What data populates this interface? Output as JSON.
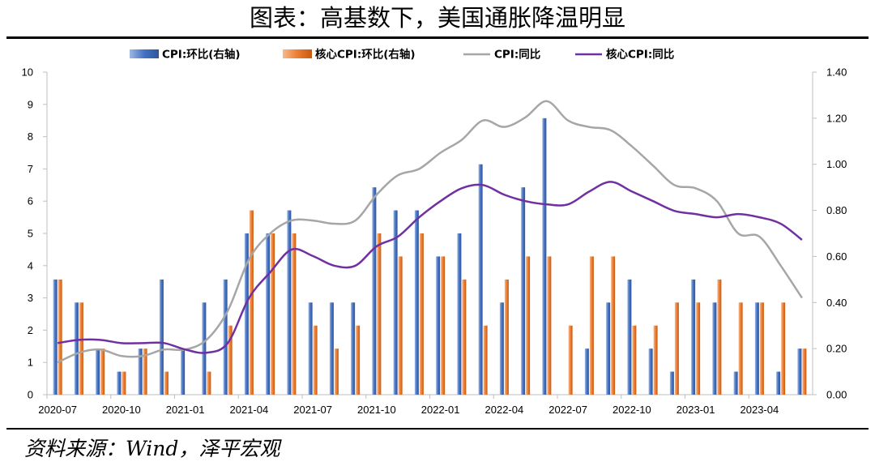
{
  "title": "图表：高基数下，美国通胀降温明显",
  "source": "资料来源：Wind，泽平宏观",
  "colors": {
    "cpi_mom": "#4472C4",
    "core_mom": "#ED7D31",
    "cpi_yoy": "#A6A6A6",
    "core_yoy": "#7030A0"
  },
  "chart_data": {
    "type": "bar+line",
    "legend_position": "top",
    "grid": false,
    "categories": [
      "2020-07",
      "2020-08",
      "2020-09",
      "2020-10",
      "2020-11",
      "2020-12",
      "2021-01",
      "2021-02",
      "2021-03",
      "2021-04",
      "2021-05",
      "2021-06",
      "2021-07",
      "2021-08",
      "2021-09",
      "2021-10",
      "2021-11",
      "2021-12",
      "2022-01",
      "2022-02",
      "2022-03",
      "2022-04",
      "2022-05",
      "2022-06",
      "2022-07",
      "2022-08",
      "2022-09",
      "2022-10",
      "2022-11",
      "2022-12",
      "2023-01",
      "2023-02",
      "2023-03",
      "2023-04",
      "2023-05",
      "2023-06"
    ],
    "x_tick_labels": [
      "2020-07",
      "2020-10",
      "2021-01",
      "2021-04",
      "2021-07",
      "2021-10",
      "2022-01",
      "2022-04",
      "2022-07",
      "2022-10",
      "2023-01",
      "2023-04"
    ],
    "left_axis": {
      "ylim": [
        0,
        10
      ],
      "ticks": [
        "0",
        "1",
        "2",
        "3",
        "4",
        "5",
        "6",
        "7",
        "8",
        "9",
        "10"
      ]
    },
    "right_axis": {
      "ylim": [
        0,
        1.4
      ],
      "ticks": [
        "0.00",
        "0.20",
        "0.40",
        "0.60",
        "0.80",
        "1.00",
        "1.20",
        "1.40"
      ]
    },
    "series": [
      {
        "name": "CPI:环比(右轴)",
        "kind": "bar",
        "axis": "right",
        "values": [
          0.5,
          0.4,
          0.2,
          0.1,
          0.2,
          0.5,
          0.2,
          0.4,
          0.5,
          0.7,
          0.7,
          0.8,
          0.4,
          0.4,
          0.4,
          0.9,
          0.8,
          0.8,
          0.6,
          0.7,
          1.0,
          0.4,
          0.9,
          1.2,
          0.0,
          0.2,
          0.4,
          0.5,
          0.2,
          0.1,
          0.5,
          0.4,
          0.1,
          0.4,
          0.1,
          0.2
        ]
      },
      {
        "name": "核心CPI:环比(右轴)",
        "kind": "bar",
        "axis": "right",
        "values": [
          0.5,
          0.4,
          0.2,
          0.1,
          0.2,
          0.1,
          0.0,
          0.1,
          0.3,
          0.8,
          0.7,
          0.7,
          0.3,
          0.2,
          0.3,
          0.7,
          0.6,
          0.7,
          0.6,
          0.5,
          0.3,
          0.5,
          0.6,
          0.6,
          0.3,
          0.6,
          0.6,
          0.3,
          0.3,
          0.4,
          0.4,
          0.5,
          0.4,
          0.4,
          0.4,
          0.2
        ]
      },
      {
        "name": "CPI:同比",
        "kind": "line",
        "axis": "left",
        "values": [
          1.0,
          1.3,
          1.4,
          1.2,
          1.2,
          1.4,
          1.4,
          1.7,
          2.6,
          4.2,
          5.0,
          5.4,
          5.4,
          5.3,
          5.4,
          6.2,
          6.8,
          7.0,
          7.5,
          7.9,
          8.5,
          8.3,
          8.6,
          9.1,
          8.5,
          8.3,
          8.2,
          7.7,
          7.1,
          6.5,
          6.4,
          6.0,
          5.0,
          4.9,
          4.0,
          3.0
        ]
      },
      {
        "name": "核心CPI:同比",
        "kind": "line",
        "axis": "left",
        "values": [
          1.6,
          1.7,
          1.7,
          1.6,
          1.6,
          1.6,
          1.4,
          1.3,
          1.6,
          3.0,
          3.8,
          4.5,
          4.3,
          4.0,
          4.0,
          4.6,
          4.9,
          5.5,
          6.0,
          6.4,
          6.5,
          6.2,
          6.0,
          5.9,
          5.9,
          6.3,
          6.6,
          6.3,
          6.0,
          5.7,
          5.6,
          5.5,
          5.6,
          5.5,
          5.3,
          4.8
        ]
      }
    ]
  }
}
